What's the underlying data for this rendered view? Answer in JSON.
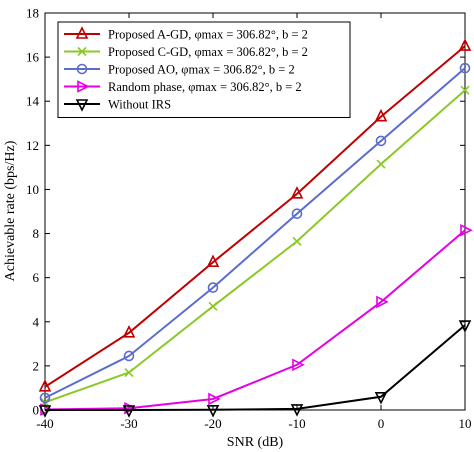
{
  "chart_data": {
    "type": "line",
    "title": "",
    "xlabel": "SNR (dB)",
    "ylabel": "Achievable rate (bps/Hz)",
    "xlim": [
      -40,
      10
    ],
    "ylim": [
      0,
      18
    ],
    "xticks": [
      -40,
      -30,
      -20,
      -10,
      0,
      10
    ],
    "yticks": [
      0,
      2,
      4,
      6,
      8,
      10,
      12,
      14,
      16,
      18
    ],
    "grid": false,
    "legend_position": "top-left",
    "x": [
      -40,
      -30,
      -20,
      -10,
      0,
      10
    ],
    "series": [
      {
        "name": "Proposed A-GD, φmax = 306.82°, b = 2",
        "values": [
          1.05,
          3.5,
          6.7,
          9.8,
          13.3,
          16.5
        ],
        "color": "#c00000",
        "marker": "triangle-up"
      },
      {
        "name": "Proposed C-GD, φmax = 306.82°, b = 2",
        "values": [
          0.35,
          1.7,
          4.7,
          7.65,
          11.15,
          14.5
        ],
        "color": "#8ac926",
        "marker": "x"
      },
      {
        "name": "Proposed AO, φmax = 306.82°, b = 2",
        "values": [
          0.55,
          2.45,
          5.55,
          8.9,
          12.2,
          15.5
        ],
        "color": "#5b6ccf",
        "marker": "circle"
      },
      {
        "name": "Random phase, φmax = 306.82°, b = 2",
        "values": [
          0.02,
          0.08,
          0.5,
          2.05,
          4.9,
          8.15
        ],
        "color": "#e600e6",
        "marker": "triangle-right"
      },
      {
        "name": "Without IRS",
        "values": [
          0.0,
          0.0,
          0.01,
          0.05,
          0.6,
          3.85
        ],
        "color": "#000000",
        "marker": "triangle-down"
      }
    ]
  }
}
